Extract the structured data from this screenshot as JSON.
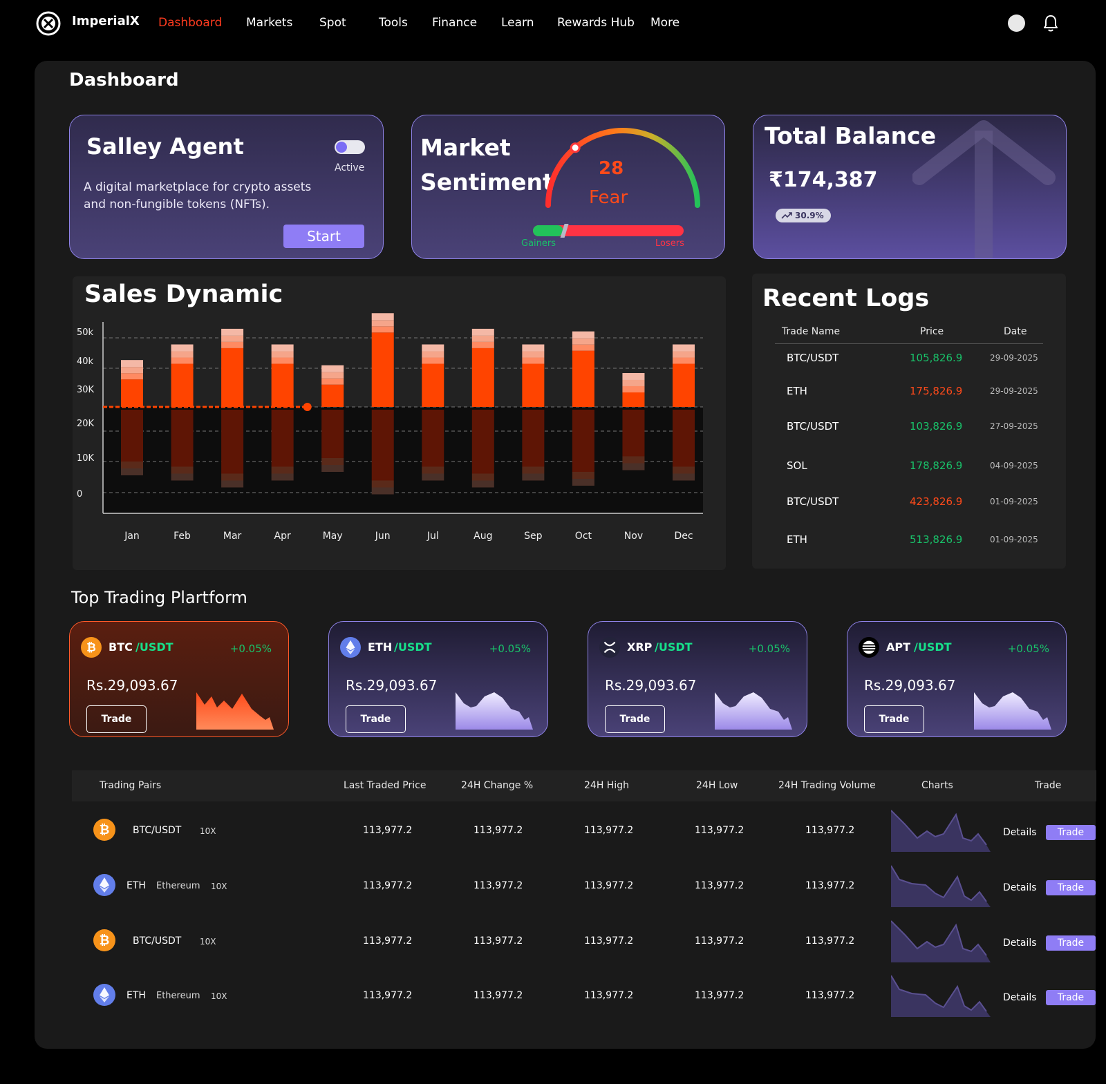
{
  "nav": {
    "brand": "ImperialX",
    "items": [
      "Dashboard",
      "Markets",
      "Spot",
      "Tools",
      "Finance",
      "Learn",
      "Rewards Hub",
      "More"
    ],
    "active": "Dashboard"
  },
  "page": {
    "title": "Dashboard"
  },
  "agent": {
    "title": "Salley Agent",
    "toggle_label": "Active",
    "description": "A digital marketplace for crypto assets and non-fungible tokens (NFTs).",
    "start_label": "Start"
  },
  "sentiment": {
    "title_line1": "Market",
    "title_line2": "Sentiment",
    "value": "28",
    "label": "Fear",
    "gainers_label": "Gainers",
    "losers_label": "Losers",
    "gauge_fraction": 0.28,
    "gainers_fraction": 0.2
  },
  "balance": {
    "title": "Total Balance",
    "value": "₹174,387",
    "change": "30.9%"
  },
  "chart_data": {
    "type": "bar",
    "title": "Sales Dynamic",
    "categories": [
      "Jan",
      "Feb",
      "Mar",
      "Apr",
      "May",
      "Jun",
      "Jul",
      "Aug",
      "Sep",
      "Oct",
      "Nov",
      "Dec"
    ],
    "y_tick_labels": [
      "50k",
      "40k",
      "30K",
      "20K",
      "10K",
      "0"
    ],
    "series": [
      {
        "values": [
          38,
          44,
          50,
          44,
          36,
          56,
          44,
          50,
          44,
          49,
          33,
          44
        ]
      },
      {
        "values": [
          14,
          11,
          7,
          11,
          16,
          3,
          11,
          7,
          11,
          8,
          17,
          11
        ]
      }
    ],
    "marker_month": "Apr",
    "colors": {
      "accent": "#ff4400",
      "dark": "#5e1505"
    }
  },
  "logs": {
    "title": "Recent Logs",
    "headers": [
      "Trade Name",
      "Price",
      "Date"
    ],
    "rows": [
      {
        "name": "BTC/USDT",
        "price": "105,826.9",
        "date": "29-09-2025",
        "trend": "up"
      },
      {
        "name": "ETH",
        "price": "175,826.9",
        "date": "29-09-2025",
        "trend": "down"
      },
      {
        "name": "BTC/USDT",
        "price": "103,826.9",
        "date": "27-09-2025",
        "trend": "up"
      },
      {
        "name": "SOL",
        "price": "178,826.9",
        "date": "04-09-2025",
        "trend": "up"
      },
      {
        "name": "BTC/USDT",
        "price": "423,826.9",
        "date": "01-09-2025",
        "trend": "down"
      },
      {
        "name": "ETH",
        "price": "513,826.9",
        "date": "01-09-2025",
        "trend": "up"
      }
    ]
  },
  "platforms": {
    "title": "Top Trading Plartform",
    "cards": [
      {
        "base": "BTC",
        "quote": "/USDT",
        "change": "+0.05%",
        "price": "Rs.29,093.67",
        "trade_label": "Trade",
        "icon": "bitcoin-icon"
      },
      {
        "base": "ETH",
        "quote": "/USDT",
        "change": "+0.05%",
        "price": "Rs.29,093.67",
        "trade_label": "Trade",
        "icon": "ethereum-icon"
      },
      {
        "base": "XRP",
        "quote": "/USDT",
        "change": "+0.05%",
        "price": "Rs.29,093.67",
        "trade_label": "Trade",
        "icon": "xrp-icon"
      },
      {
        "base": "APT",
        "quote": "/USDT",
        "change": "+0.05%",
        "price": "Rs.29,093.67",
        "trade_label": "Trade",
        "icon": "aptos-icon"
      }
    ]
  },
  "table": {
    "headers": [
      "Trading Pairs",
      "Last Traded Price",
      "24H Change %",
      "24H High",
      "24H Low",
      "24H Trading Volume",
      "Charts",
      "Trade"
    ],
    "rows": [
      {
        "pair": "BTC/USDT",
        "sub": "",
        "leverage": "10X",
        "icon": "bitcoin-icon",
        "last": "113,977.2",
        "change": "113,977.2",
        "high": "113,977.2",
        "low": "113,977.2",
        "volume": "113,977.2",
        "details": "Details",
        "trade": "Trade"
      },
      {
        "pair": "ETH",
        "sub": "Ethereum",
        "leverage": "10X",
        "icon": "ethereum-icon",
        "last": "113,977.2",
        "change": "113,977.2",
        "high": "113,977.2",
        "low": "113,977.2",
        "volume": "113,977.2",
        "details": "Details",
        "trade": "Trade"
      },
      {
        "pair": "BTC/USDT",
        "sub": "",
        "leverage": "10X",
        "icon": "bitcoin-icon",
        "last": "113,977.2",
        "change": "113,977.2",
        "high": "113,977.2",
        "low": "113,977.2",
        "volume": "113,977.2",
        "details": "Details",
        "trade": "Trade"
      },
      {
        "pair": "ETH",
        "sub": "Ethereum",
        "leverage": "10X",
        "icon": "ethereum-icon",
        "last": "113,977.2",
        "change": "113,977.2",
        "high": "113,977.2",
        "low": "113,977.2",
        "volume": "113,977.2",
        "details": "Details",
        "trade": "Trade"
      }
    ]
  },
  "colors": {
    "up": "#19c26a",
    "down": "#ff4a1a",
    "accent": "#8f7df5"
  }
}
